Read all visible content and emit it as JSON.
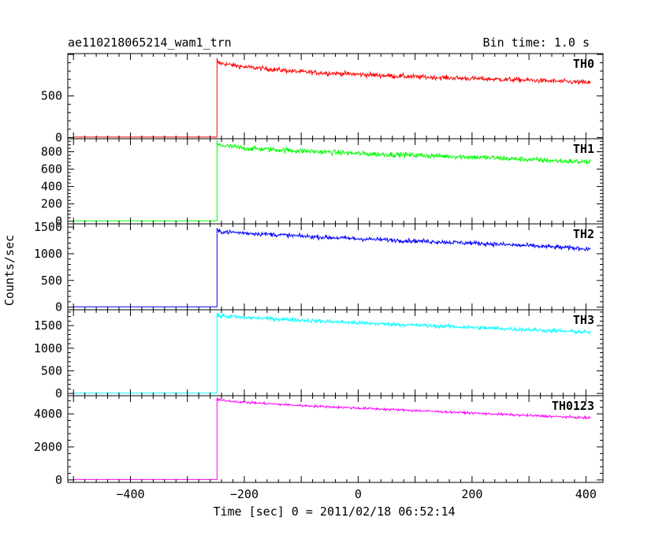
{
  "header": {
    "title": "ae110218065214_wam1_trn",
    "bin_time": "Bin time: 1.0 s"
  },
  "chart_data": {
    "type": "line",
    "xlabel": "Time [sec] 0 = 2011/02/18 06:52:14",
    "ylabel": "Counts/sec",
    "xlim": [
      -510,
      430
    ],
    "x_ticks": [
      -400,
      -200,
      0,
      200,
      400
    ],
    "x_tick_labels": [
      "−400",
      "−200",
      "0",
      "200",
      "400"
    ],
    "grid": false,
    "step_time": -248,
    "data_start": -500,
    "data_end": 408,
    "series": [
      {
        "name": "TH0",
        "color": "#ff0000",
        "ylim": [
          -15,
          1010
        ],
        "y_ticks": [
          0,
          500
        ],
        "y_tick_labels": [
          "0",
          "500"
        ],
        "pre_level": 5,
        "post_x": [
          -248,
          -200,
          -100,
          0,
          100,
          200,
          300,
          408
        ],
        "post_y": [
          900,
          850,
          790,
          760,
          730,
          710,
          690,
          660
        ],
        "noise": 28
      },
      {
        "name": "TH1",
        "color": "#00ff00",
        "ylim": [
          -30,
          950
        ],
        "y_ticks": [
          0,
          200,
          400,
          600,
          800
        ],
        "y_tick_labels": [
          "0",
          "200",
          "400",
          "600",
          "800"
        ],
        "pre_level": 5,
        "post_x": [
          -248,
          -200,
          -100,
          0,
          100,
          200,
          300,
          408
        ],
        "post_y": [
          880,
          840,
          810,
          780,
          760,
          740,
          710,
          680
        ],
        "noise": 30
      },
      {
        "name": "TH2",
        "color": "#0000ff",
        "ylim": [
          -50,
          1560
        ],
        "y_ticks": [
          0,
          500,
          1000,
          1500
        ],
        "y_tick_labels": [
          "0",
          "500",
          "1000",
          "1500"
        ],
        "pre_level": 5,
        "post_x": [
          -248,
          -200,
          -100,
          0,
          100,
          200,
          300,
          408
        ],
        "post_y": [
          1420,
          1390,
          1330,
          1280,
          1240,
          1200,
          1150,
          1090
        ],
        "noise": 40
      },
      {
        "name": "TH3",
        "color": "#00ffff",
        "ylim": [
          -50,
          1850
        ],
        "y_ticks": [
          0,
          500,
          1000,
          1500
        ],
        "y_tick_labels": [
          "0",
          "500",
          "1000",
          "1500"
        ],
        "pre_level": 5,
        "post_x": [
          -248,
          -200,
          -100,
          0,
          100,
          200,
          300,
          408
        ],
        "post_y": [
          1720,
          1680,
          1620,
          1560,
          1510,
          1460,
          1410,
          1350
        ],
        "noise": 45
      },
      {
        "name": "TH0123",
        "color": "#ff00ff",
        "ylim": [
          -150,
          5100
        ],
        "y_ticks": [
          0,
          2000,
          4000
        ],
        "y_tick_labels": [
          "0",
          "2000",
          "4000"
        ],
        "pre_level": 20,
        "post_x": [
          -248,
          -200,
          -100,
          0,
          100,
          200,
          300,
          408
        ],
        "post_y": [
          4850,
          4700,
          4500,
          4350,
          4200,
          4050,
          3900,
          3750
        ],
        "noise": 70
      }
    ]
  }
}
